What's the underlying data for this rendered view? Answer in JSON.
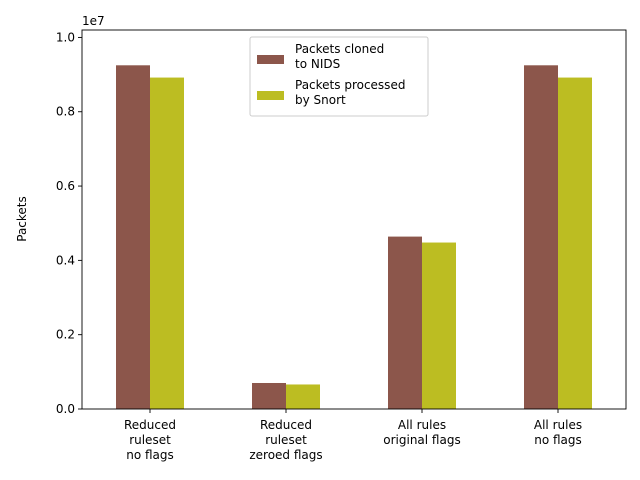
{
  "chart_data": {
    "type": "bar",
    "categories": [
      [
        "Reduced",
        "ruleset",
        "no flags"
      ],
      [
        "Reduced",
        "ruleset",
        "zeroed flags"
      ],
      [
        "All rules",
        "original flags"
      ],
      [
        "All rules",
        "no flags"
      ]
    ],
    "series": [
      {
        "name": "Packets cloned\nto NIDS",
        "color": "#8c564b",
        "values": [
          9250000,
          700000,
          4640000,
          9250000
        ]
      },
      {
        "name": "Packets processed\nby Snort",
        "color": "#bcbd22",
        "values": [
          8920000,
          660000,
          4480000,
          8920000
        ]
      }
    ],
    "ylabel": "Packets",
    "xlabel": "",
    "ylim": [
      0,
      10200000
    ],
    "yticks": [
      0,
      2000000,
      4000000,
      6000000,
      8000000,
      10000000
    ],
    "ytick_labels": [
      "0.0",
      "0.2",
      "0.4",
      "0.6",
      "0.8",
      "1.0"
    ],
    "offset_label": "1e7",
    "legend_position": "top-center",
    "grid": false
  }
}
